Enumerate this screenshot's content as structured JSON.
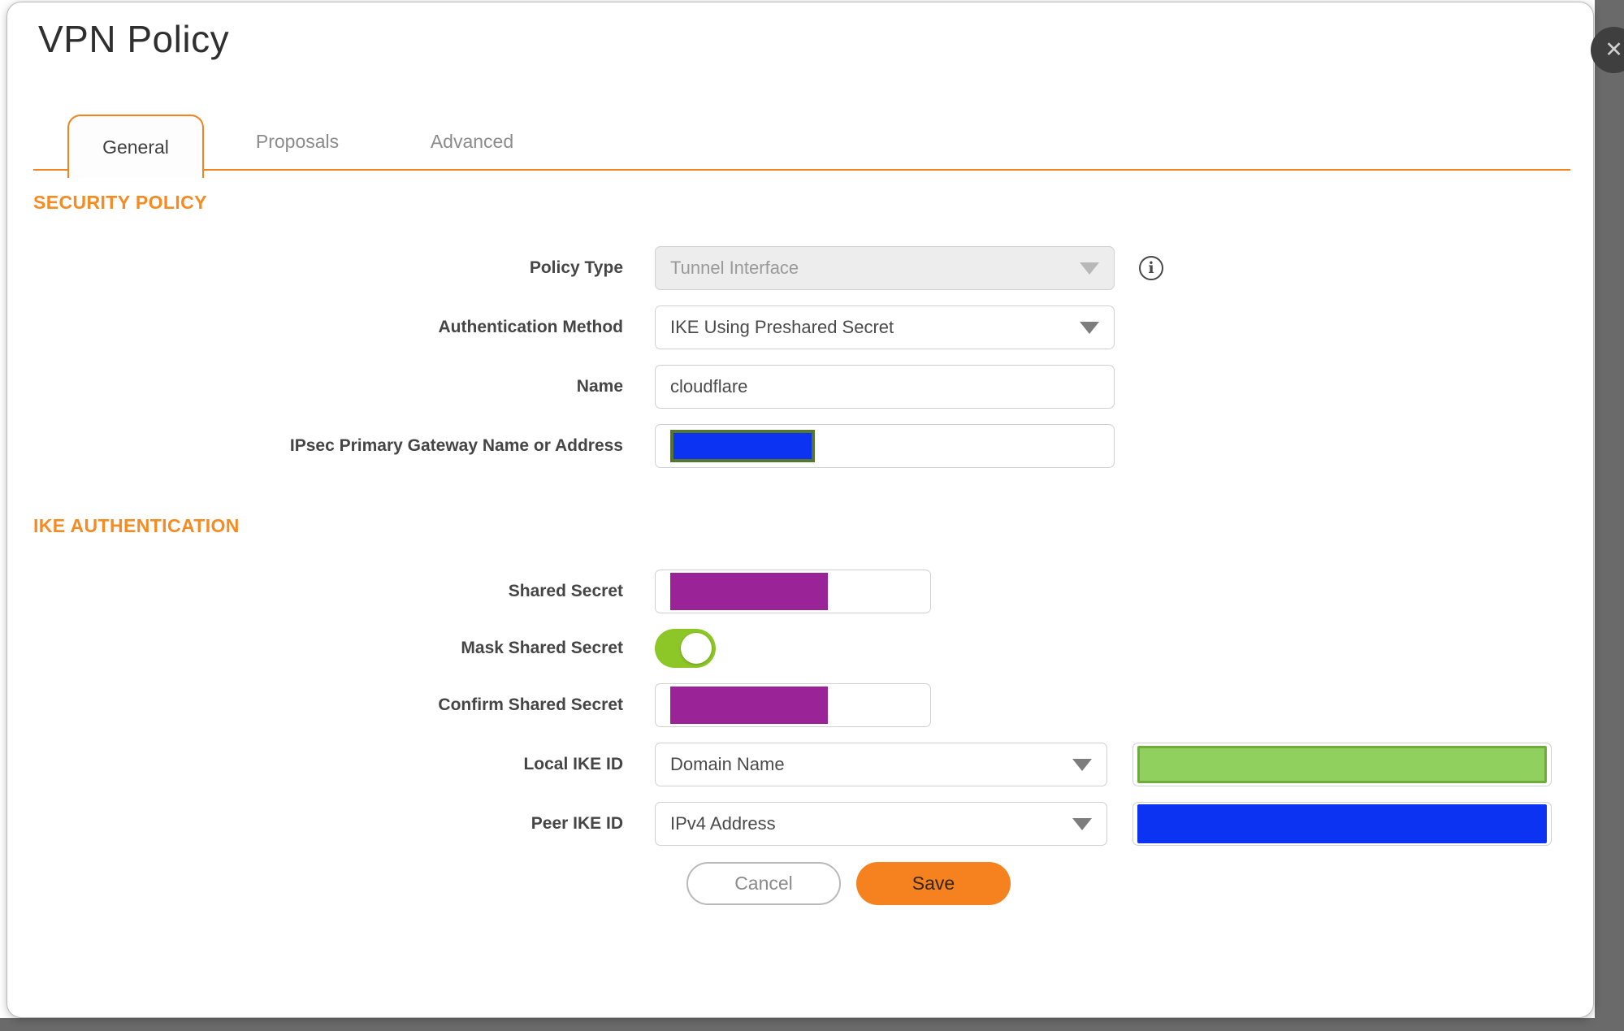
{
  "dialog": {
    "title": "VPN Policy",
    "close_icon": "✕"
  },
  "tabs": [
    {
      "label": "General",
      "active": true
    },
    {
      "label": "Proposals",
      "active": false
    },
    {
      "label": "Advanced",
      "active": false
    }
  ],
  "sections": {
    "security_policy": {
      "heading": "SECURITY POLICY",
      "fields": {
        "policy_type": {
          "label": "Policy Type",
          "value": "Tunnel Interface",
          "disabled": true
        },
        "auth_method": {
          "label": "Authentication Method",
          "value": "IKE Using Preshared Secret"
        },
        "name": {
          "label": "Name",
          "value": "cloudflare"
        },
        "gateway": {
          "label": "IPsec Primary Gateway Name or Address",
          "value_state": "redacted"
        }
      }
    },
    "ike_authentication": {
      "heading": "IKE AUTHENTICATION",
      "fields": {
        "shared_secret": {
          "label": "Shared Secret",
          "value_state": "redacted"
        },
        "mask_shared_secret": {
          "label": "Mask Shared Secret",
          "state": "on"
        },
        "confirm_shared_secret": {
          "label": "Confirm Shared Secret",
          "value_state": "redacted"
        },
        "local_ike_id": {
          "label": "Local IKE ID",
          "value": "Domain Name",
          "side_value_state": "redacted"
        },
        "peer_ike_id": {
          "label": "Peer IKE ID",
          "value": "IPv4 Address",
          "side_value_state": "redacted"
        }
      }
    }
  },
  "buttons": {
    "cancel": "Cancel",
    "save": "Save"
  },
  "icons": {
    "info": "i"
  },
  "colors": {
    "accent_orange": "#f5821f",
    "heading_orange": "#f68b21",
    "toggle_green": "#8cc727",
    "redaction_blue": "#0d33f2",
    "redaction_purple": "#9a2397",
    "redaction_green_fill": "#8fd05f",
    "redaction_green_border": "#71ab3e",
    "redaction_olive_border": "#55762c"
  }
}
